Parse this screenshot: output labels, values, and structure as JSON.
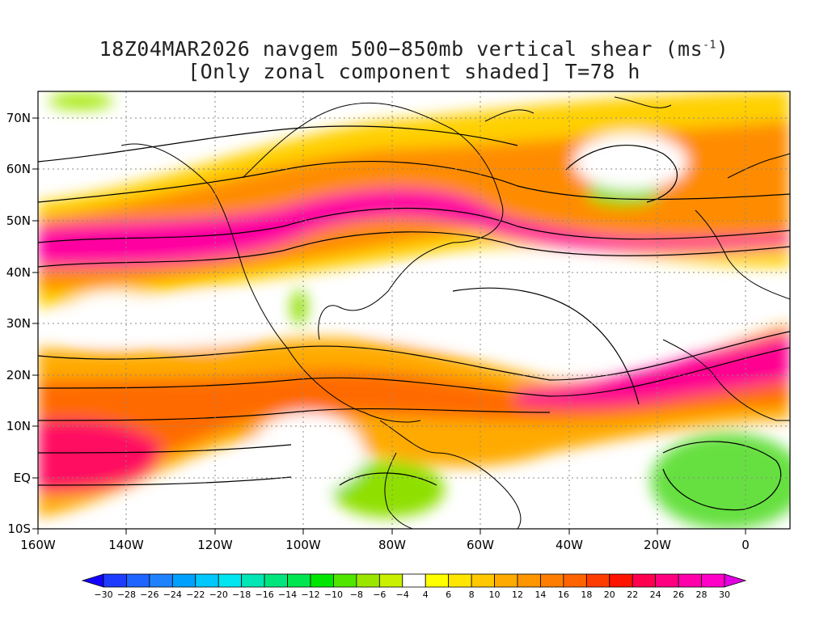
{
  "title_line1": "18Z04MAR2026 navgem 500−850mb vertical shear (ms",
  "title_unit_exp": "-1",
  "title_line1_end": ")",
  "title_line2": "[Only zonal component shaded] T=78 h",
  "colors": {
    "c_neg": "#9be600",
    "c_zero": "#ffffff",
    "c_pos_low": "#ffdd00",
    "c_pos_mid": "#ff9900",
    "c_pos_high": "#ff3300",
    "c_pos_max": "#ff00aa"
  },
  "map": {
    "lon_labels": [
      "160W",
      "140W",
      "120W",
      "100W",
      "80W",
      "60W",
      "40W",
      "20W",
      "0"
    ],
    "lat_labels": [
      "70N",
      "60N",
      "50N",
      "40N",
      "30N",
      "20N",
      "10N",
      "EQ",
      "10S"
    ]
  },
  "colorbar": {
    "labels": [
      "−30",
      "−28",
      "−26",
      "−24",
      "−22",
      "−20",
      "−18",
      "−16",
      "−14",
      "−12",
      "−10",
      "−8",
      "−6",
      "−4",
      "4",
      "6",
      "8",
      "10",
      "12",
      "14",
      "16",
      "18",
      "20",
      "22",
      "24",
      "26",
      "28",
      "30"
    ],
    "colors": [
      "#1400ff",
      "#1e3cff",
      "#1e64ff",
      "#1e82ff",
      "#00a0ff",
      "#00c8ff",
      "#00e6f0",
      "#00e6b4",
      "#00e67d",
      "#00e650",
      "#00e600",
      "#50e600",
      "#9be600",
      "#c8f000",
      "#ffffff",
      "#ffff00",
      "#ffe600",
      "#ffc800",
      "#ffaa00",
      "#ff9600",
      "#ff7d00",
      "#ff6400",
      "#ff3c00",
      "#ff1400",
      "#ff0050",
      "#ff0080",
      "#ff00aa",
      "#ff00c8",
      "#e000e0"
    ]
  }
}
